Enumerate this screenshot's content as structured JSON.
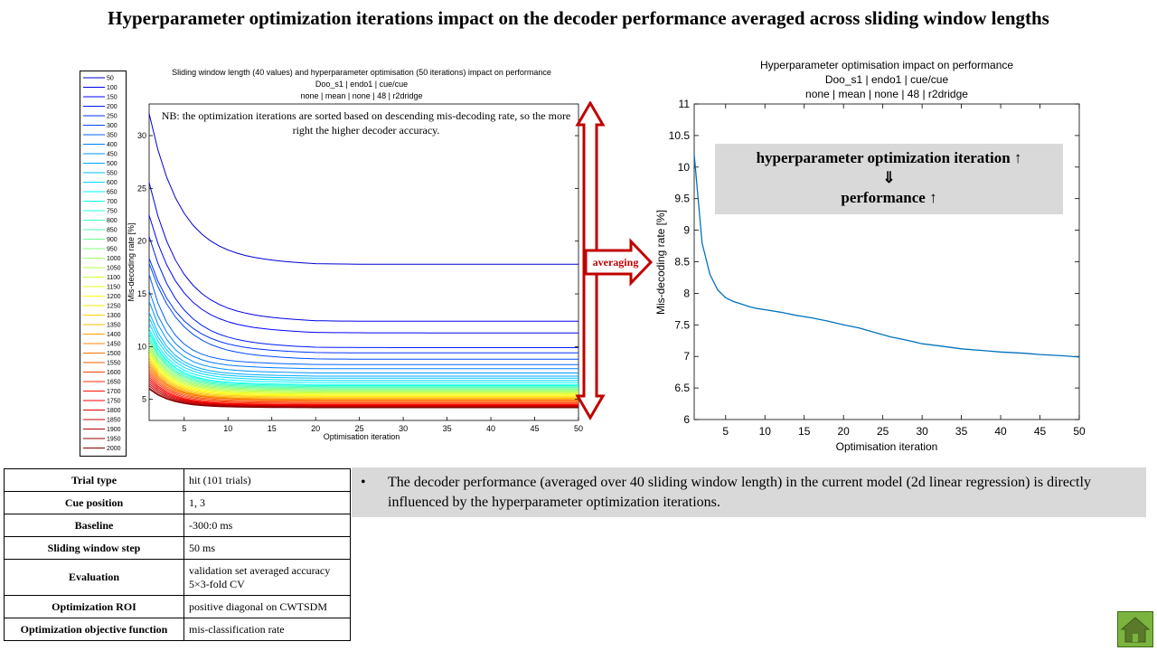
{
  "title": "Hyperparameter optimization iterations impact on the decoder performance averaged across sliding window lengths",
  "legend_entries": [
    "50",
    "100",
    "150",
    "200",
    "250",
    "300",
    "350",
    "400",
    "450",
    "500",
    "550",
    "600",
    "650",
    "700",
    "750",
    "800",
    "850",
    "900",
    "950",
    "1000",
    "1050",
    "1100",
    "1150",
    "1200",
    "1250",
    "1300",
    "1350",
    "1400",
    "1450",
    "1500",
    "1550",
    "1600",
    "1650",
    "1700",
    "1750",
    "1800",
    "1850",
    "1900",
    "1950",
    "2000"
  ],
  "left_chart": {
    "title_lines": [
      "Sliding window length (40 values) and hyperparameter optimisation (50 iterations) impact on performance",
      "Doo_s1 | endo1 | cue/cue",
      "none | mean | none | 48 | r2dridge"
    ],
    "xlabel": "Optimisation iteration",
    "ylabel": "Mis-decoding rate [%]",
    "xticks": [
      "5",
      "10",
      "15",
      "20",
      "25",
      "30",
      "35",
      "40",
      "45",
      "50"
    ],
    "yticks": [
      "5",
      "10",
      "15",
      "20",
      "25",
      "30"
    ],
    "note": "NB: the optimization iterations are sorted based on descending mis-decoding rate, so the more right the higher decoder accuracy."
  },
  "arrow_label": "averaging",
  "chart_data": {
    "type": "line",
    "title": "Hyperparameter optimisation impact on performance",
    "title_lines": [
      "Hyperparameter optimisation impact on performance",
      "Doo_s1 | endo1 | cue/cue",
      "none | mean | none | 48 | r2dridge"
    ],
    "xlabel": "Optimisation iteration",
    "ylabel": "Mis-decoding rate [%]",
    "xlim": [
      1,
      50
    ],
    "ylim": [
      6,
      11
    ],
    "xticks": [
      "5",
      "10",
      "15",
      "20",
      "25",
      "30",
      "35",
      "40",
      "45",
      "50"
    ],
    "yticks": [
      "6",
      "6.5",
      "7",
      "7.5",
      "8",
      "8.5",
      "9",
      "9.5",
      "10",
      "10.5",
      "11"
    ],
    "color": "#0072bd",
    "x": [
      1,
      2,
      3,
      4,
      5,
      6,
      7,
      8,
      9,
      10,
      12,
      14,
      16,
      18,
      20,
      22,
      24,
      26,
      28,
      30,
      32,
      35,
      38,
      40,
      43,
      45,
      48,
      50
    ],
    "y": [
      10.2,
      8.8,
      8.3,
      8.05,
      7.93,
      7.87,
      7.83,
      7.79,
      7.76,
      7.74,
      7.7,
      7.65,
      7.61,
      7.56,
      7.5,
      7.45,
      7.38,
      7.31,
      7.26,
      7.2,
      7.17,
      7.12,
      7.09,
      7.07,
      7.05,
      7.03,
      7.01,
      6.99
    ]
  },
  "callout": {
    "line1": "hyperparameter optimization iteration ↑",
    "line2": "⇓",
    "line3": "performance ↑"
  },
  "params": [
    {
      "k": "Trial type",
      "v": "hit (101  trials)"
    },
    {
      "k": "Cue position",
      "v": "1, 3"
    },
    {
      "k": "Baseline",
      "v": "-300:0  ms"
    },
    {
      "k": "Sliding window   step",
      "v": "50  ms"
    },
    {
      "k": "Evaluation",
      "v": "validation set averaged accuracy\n5×3-fold  CV"
    },
    {
      "k": "Optimization  ROI",
      "v": "positive diagonal on CWTSDM"
    },
    {
      "k": "Optimization  objective  function",
      "v": "mis-classification rate"
    }
  ],
  "bullet": {
    "symbol": "•",
    "text": "The decoder performance (averaged over 40 sliding window length) in the current model (2d linear regression) is directly influenced by the hyperparameter optimization iterations."
  }
}
